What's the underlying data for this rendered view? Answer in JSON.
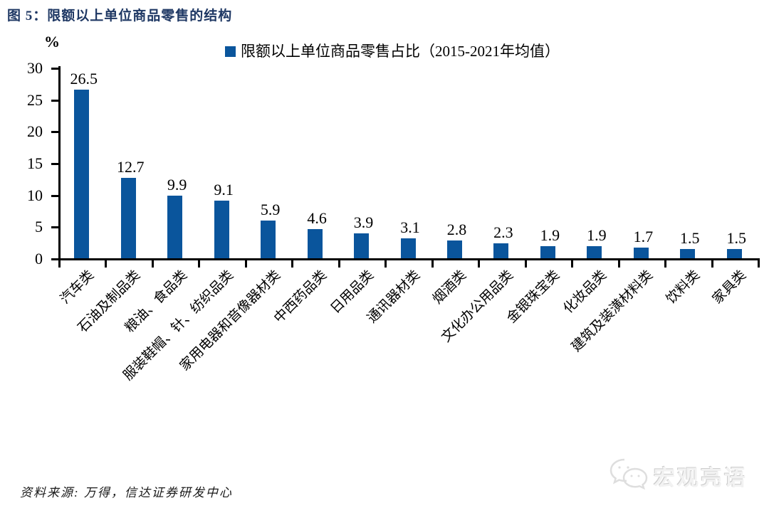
{
  "figure": {
    "title": "图 5：限额以上单位商品零售的结构",
    "source": "资料来源: 万得，信达证券研发中心",
    "watermark": "宏观亮语"
  },
  "chart_data": {
    "type": "bar",
    "title": "限额以上单位商品零售的结构",
    "legend": [
      "限额以上单位商品零售占比（2015-2021年均值）"
    ],
    "legend_position": "top",
    "ylabel": "%",
    "xlabel": "",
    "ylim": [
      0,
      30
    ],
    "yticks": [
      0,
      5,
      10,
      15,
      20,
      25,
      30
    ],
    "grid": false,
    "categories": [
      "汽车类",
      "石油及制品类",
      "粮油、食品类",
      "服装鞋帽、针、纺织品类",
      "家用电器和音像器材类",
      "中西药品类",
      "日用品类",
      "通讯器材类",
      "烟酒类",
      "文化办公用品类",
      "金银珠宝类",
      "化妆品类",
      "建筑及装潢材料类",
      "饮料类",
      "家具类"
    ],
    "values": [
      26.5,
      12.7,
      9.9,
      9.1,
      5.9,
      4.6,
      3.9,
      3.1,
      2.8,
      2.3,
      1.9,
      1.9,
      1.7,
      1.5,
      1.5
    ],
    "bar_color": "#0a559c",
    "axis_color": "#000000",
    "title_color": "#1f3864"
  }
}
